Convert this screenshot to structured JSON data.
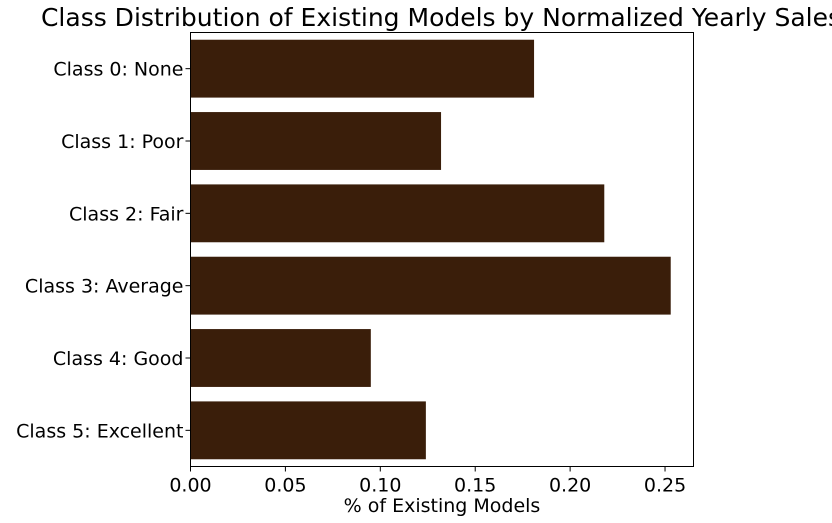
{
  "chart_data": {
    "type": "bar",
    "orientation": "horizontal",
    "title": "Class Distribution of Existing Models by Normalized Yearly Sales",
    "xlabel": "% of Existing Models",
    "ylabel": "",
    "categories": [
      "Class 0: None",
      "Class 1: Poor",
      "Class 2: Fair",
      "Class 3: Average",
      "Class 4: Good",
      "Class 5: Excellent"
    ],
    "values": [
      0.181,
      0.132,
      0.218,
      0.253,
      0.095,
      0.124
    ],
    "xlim": [
      0,
      0.265
    ],
    "xticks": [
      0.0,
      0.05,
      0.1,
      0.15,
      0.2,
      0.25
    ],
    "xtick_labels": [
      "0.00",
      "0.05",
      "0.10",
      "0.15",
      "0.20",
      "0.25"
    ],
    "bar_color": "#3a1e0a",
    "grid": false,
    "legend": "none"
  }
}
